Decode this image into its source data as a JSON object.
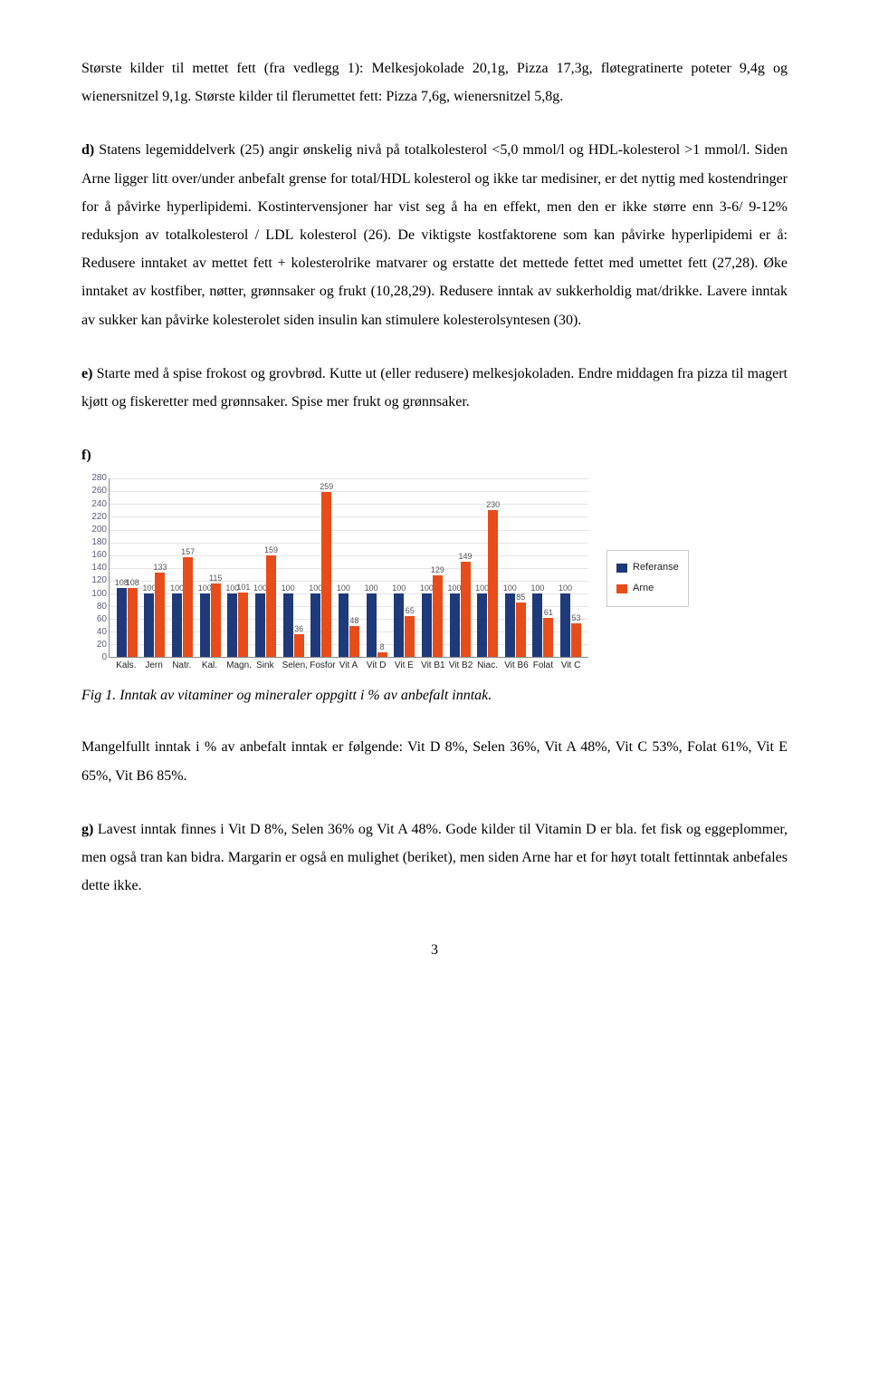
{
  "paragraphs": {
    "p1": "Største kilder til mettet  fett (fra vedlegg 1): Melkesjokolade 20,1g, Pizza 17,3g, fløtegratinerte poteter 9,4g og wienersnitzel 9,1g. Største kilder til flerumettet  fett: Pizza 7,6g, wienersnitzel 5,8g.",
    "p2a": "d) ",
    "p2b": "Statens legemiddelverk (25) angir ønskelig nivå på  totalkolesterol <5,0 mmol/l og HDL-kolesterol >1 mmol/l. Siden Arne ligger litt  over/under anbefalt grense for total/HDL kolesterol og ikke tar medisiner, er det nyttig med kostendringer for å påvirke hyperlipidemi. Kostintervensjoner har vist  seg å ha en effekt, men den er ikke større enn 3-6/ 9-12% reduksjon av totalkolesterol / LDL kolesterol (26). De viktigste kostfaktorene som kan påvirke hyperlipidemi er å: Redusere inntaket  av mettet fett + kolesterolrike matvarer og erstatte det  mettede fettet med umettet  fett (27,28). Øke inntaket av kostfiber, nøtter, grønnsaker og frukt (10,28,29). Redusere inntak av sukkerholdig mat/drikke. Lavere inntak av sukker kan påvirke kolesterolet siden insulin kan stimulere kolesterolsyntesen (30).",
    "p3a": "e) ",
    "p3b": "Starte med å  spise frokost og grovbrød. Kutte ut (eller redusere)  melkesjokoladen. Endre middagen fra pizza til magert kjøtt og fiskeretter med grønnsaker. Spise mer frukt og grønnsaker.",
    "f_label": "f)",
    "fig_caption": "Fig 1. Inntak av vitaminer og mineraler oppgitt i  % av anbefalt inntak.",
    "p4": "Mangelfullt inntak i % av anbefalt inntak er følgende: Vit D 8%, Selen 36%, Vit A 48%, Vit C 53%, Folat  61%, Vit E 65%, Vit B6 85%.",
    "p5a": "g) ",
    "p5b": "Lavest inntak  finnes i Vit D 8%, Selen 36% og Vit A 48%. Gode kilder til  Vitamin D er bla. fet fisk og eggeplommer, men også  tran kan bidra. Margarin er også  en mulighet (beriket), men siden Arne har et for høyt totalt fettinntak anbefales dette ikke."
  },
  "chart": {
    "ymax": 280,
    "ytick_step": 20,
    "categories": [
      "Kals.",
      "Jern",
      "Natr.",
      "Kal.",
      "Magn.",
      "Sink",
      "Selen,",
      "Fosfor",
      "Vit A",
      "Vit D",
      "Vit E",
      "Vit B1",
      "Vit B2",
      "Niac.",
      "Vit B6",
      "Folat",
      "Vit C"
    ],
    "series": [
      {
        "name": "Referanse",
        "color": "#1f3a7a",
        "values": [
          108,
          100,
          100,
          100,
          100,
          100,
          100,
          100,
          100,
          100,
          100,
          100,
          100,
          100,
          100,
          100,
          100
        ]
      },
      {
        "name": "Arne",
        "color": "#e84c1a",
        "values": [
          108,
          133,
          157,
          115,
          101,
          159,
          36,
          259,
          48,
          8,
          65,
          129,
          149,
          230,
          85,
          61,
          53
        ]
      }
    ],
    "background_color": "#ffffff",
    "grid_color": "#e5e5e5",
    "value_label_fontsize": 9,
    "axis_fontsize": 10
  },
  "legend": {
    "items": [
      {
        "label": "Referanse",
        "color": "#1f3a7a"
      },
      {
        "label": "Arne",
        "color": "#e84c1a"
      }
    ]
  },
  "page_number": "3"
}
